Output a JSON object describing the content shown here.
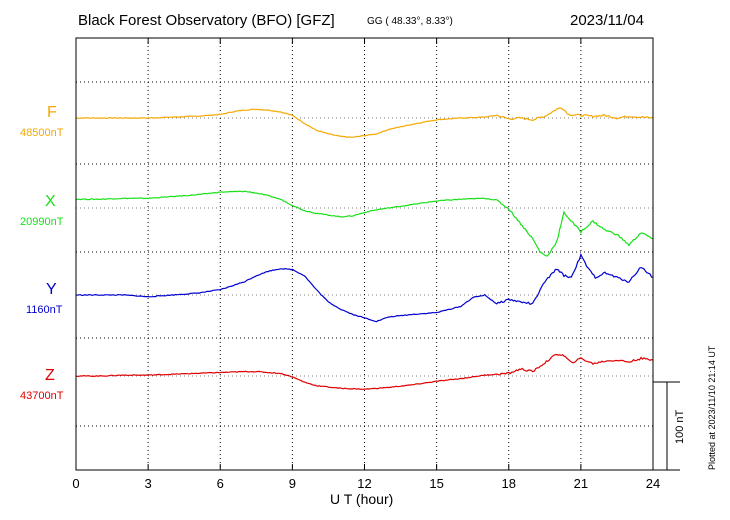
{
  "header": {
    "title": "Black Forest Observatory (BFO)  [GFZ]",
    "coords": "GG ( 48.33°,   8.33°)",
    "date": "2023/11/04"
  },
  "axis": {
    "xlabel": "U T (hour)",
    "ticks": [
      "0",
      "3",
      "6",
      "9",
      "12",
      "15",
      "18",
      "21",
      "24"
    ]
  },
  "scale": {
    "label": "100 nT"
  },
  "footer": {
    "plotted": "Plotted at 2023/11/10 21:14 UT"
  },
  "colors": {
    "F": "#f5a800",
    "X": "#18e018",
    "Y": "#0000d0",
    "Z": "#e00000"
  },
  "chart_data": {
    "type": "line",
    "title": "Black Forest Observatory (BFO)  [GFZ]",
    "xlabel": "U T (hour)",
    "xlim": [
      0,
      24
    ],
    "scale_nT": 100,
    "grid": true,
    "series": [
      {
        "name": "F",
        "baseline": "48500nT",
        "color": "#f5a800",
        "x": [
          0,
          1,
          2,
          3,
          4,
          5,
          6,
          6.5,
          7,
          7.5,
          8,
          8.5,
          9,
          9.5,
          10,
          10.5,
          11,
          11.5,
          12,
          12.5,
          13,
          14,
          15,
          16,
          17,
          17.5,
          18,
          18.5,
          19,
          19.5,
          20,
          20.2,
          20.5,
          21,
          21.5,
          22,
          22.5,
          23,
          23.5,
          24
        ],
        "y": [
          0,
          0,
          0,
          0,
          1,
          2,
          4,
          7,
          9,
          10,
          9,
          7,
          3,
          -6,
          -14,
          -18,
          -21,
          -22,
          -20,
          -18,
          -13,
          -7,
          -2,
          0,
          1,
          3,
          -1,
          0,
          -2,
          2,
          10,
          12,
          4,
          3,
          2,
          3,
          0,
          2,
          1,
          0
        ]
      },
      {
        "name": "X",
        "baseline": "20990nT",
        "color": "#18e018",
        "x": [
          0,
          1,
          2,
          3,
          4,
          5,
          6,
          7,
          7.5,
          8,
          8.5,
          9,
          9.5,
          10,
          10.5,
          11,
          11.5,
          12,
          12.5,
          13,
          13.5,
          14,
          15,
          16,
          17,
          17.5,
          18,
          18.5,
          19,
          19.3,
          19.6,
          20,
          20.3,
          20.6,
          21,
          21.5,
          22,
          22.5,
          23,
          23.5,
          24
        ],
        "y": [
          10,
          10,
          11,
          11,
          13,
          15,
          18,
          19,
          17,
          14,
          10,
          3,
          -3,
          -6,
          -8,
          -10,
          -9,
          -5,
          -2,
          0,
          2,
          4,
          8,
          10,
          11,
          9,
          -1,
          -18,
          -35,
          -50,
          -55,
          -38,
          -5,
          -15,
          -27,
          -15,
          -25,
          -30,
          -42,
          -28,
          -35
        ]
      },
      {
        "name": "Y",
        "baseline": "1160nT",
        "color": "#0000d0",
        "x": [
          0,
          1,
          2,
          3,
          4,
          5,
          6,
          7,
          7.5,
          8,
          8.5,
          9,
          9.5,
          10,
          10.5,
          11,
          11.5,
          12,
          12.5,
          13,
          14,
          15,
          16,
          16.5,
          17,
          17.5,
          18,
          18.5,
          19,
          19.5,
          20,
          20.3,
          20.6,
          21,
          21.3,
          21.6,
          22,
          22.5,
          23,
          23.5,
          24
        ],
        "y": [
          0,
          0,
          0,
          -2,
          0,
          2,
          6,
          15,
          22,
          27,
          30,
          29,
          22,
          6,
          -8,
          -16,
          -22,
          -26,
          -30,
          -25,
          -22,
          -20,
          -13,
          -3,
          0,
          -10,
          -5,
          -8,
          -10,
          15,
          30,
          22,
          20,
          45,
          30,
          20,
          25,
          20,
          15,
          32,
          20
        ]
      },
      {
        "name": "Z",
        "baseline": "43700nT",
        "color": "#e00000",
        "x": [
          0,
          1,
          2,
          3,
          4,
          5,
          6,
          7,
          7.5,
          8,
          8.5,
          9,
          9.5,
          10,
          11,
          12,
          13,
          14,
          15,
          16,
          17,
          18,
          18.5,
          19,
          19.5,
          20,
          20.3,
          20.6,
          21,
          21.5,
          22,
          22.5,
          23,
          23.5,
          24
        ],
        "y": [
          0,
          0,
          1,
          1,
          2,
          3,
          4,
          5,
          5,
          4,
          3,
          -1,
          -7,
          -11,
          -14,
          -15,
          -13,
          -10,
          -6,
          -3,
          1,
          3,
          8,
          5,
          15,
          25,
          23,
          15,
          20,
          14,
          17,
          18,
          16,
          20,
          18
        ]
      }
    ]
  }
}
